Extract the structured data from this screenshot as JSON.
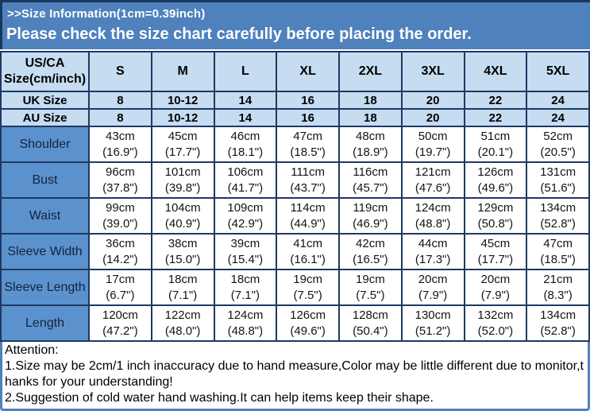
{
  "banner": {
    "title": ">>Size Information(1cm=0.39inch)",
    "subtitle": "Please check the size chart carefully before placing the order."
  },
  "table": {
    "corner_header_lines": [
      "US/CA",
      "Size(cm/inch)"
    ],
    "size_columns": [
      "S",
      "M",
      "L",
      "XL",
      "2XL",
      "3XL",
      "4XL",
      "5XL"
    ],
    "region_rows": [
      {
        "label": "UK Size",
        "values": [
          "8",
          "10-12",
          "14",
          "16",
          "18",
          "20",
          "22",
          "24"
        ]
      },
      {
        "label": "AU Size",
        "values": [
          "8",
          "10-12",
          "14",
          "16",
          "18",
          "20",
          "22",
          "24"
        ]
      }
    ],
    "measure_rows": [
      {
        "label": "Shoulder",
        "cm": [
          "43cm",
          "45cm",
          "46cm",
          "47cm",
          "48cm",
          "50cm",
          "51cm",
          "52cm"
        ],
        "inch": [
          "(16.9\")",
          "(17.7\")",
          "(18.1\")",
          "(18.5\")",
          "(18.9\")",
          "(19.7\")",
          "(20.1\")",
          "(20.5\")"
        ]
      },
      {
        "label": "Bust",
        "cm": [
          "96cm",
          "101cm",
          "106cm",
          "111cm",
          "116cm",
          "121cm",
          "126cm",
          "131cm"
        ],
        "inch": [
          "(37.8\")",
          "(39.8\")",
          "(41.7\")",
          "(43.7\")",
          "(45.7\")",
          "(47.6\")",
          "(49.6\")",
          "(51.6\")"
        ]
      },
      {
        "label": "Waist",
        "cm": [
          "99cm",
          "104cm",
          "109cm",
          "114cm",
          "119cm",
          "124cm",
          "129cm",
          "134cm"
        ],
        "inch": [
          "(39.0\")",
          "(40.9\")",
          "(42.9\")",
          "(44.9\")",
          "(46.9\")",
          "(48.8\")",
          "(50.8\")",
          "(52.8\")"
        ]
      },
      {
        "label": "Sleeve Width",
        "cm": [
          "36cm",
          "38cm",
          "39cm",
          "41cm",
          "42cm",
          "44cm",
          "45cm",
          "47cm"
        ],
        "inch": [
          "(14.2\")",
          "(15.0\")",
          "(15.4\")",
          "(16.1\")",
          "(16.5\")",
          "(17.3\")",
          "(17.7\")",
          "(18.5\")"
        ]
      },
      {
        "label": "Sleeve Length",
        "cm": [
          "17cm",
          "18cm",
          "18cm",
          "19cm",
          "19cm",
          "20cm",
          "20cm",
          "21cm"
        ],
        "inch": [
          "(6.7\")",
          "(7.1\")",
          "(7.1\")",
          "(7.5\")",
          "(7.5\")",
          "(7.9\")",
          "(7.9\")",
          "(8.3\")"
        ]
      },
      {
        "label": "Length",
        "cm": [
          "120cm",
          "122cm",
          "124cm",
          "126cm",
          "128cm",
          "130cm",
          "132cm",
          "134cm"
        ],
        "inch": [
          "(47.2\")",
          "(48.0\")",
          "(48.8\")",
          "(49.6\")",
          "(50.4\")",
          "(51.2\")",
          "(52.0\")",
          "(52.8\")"
        ]
      }
    ]
  },
  "attention": {
    "heading": "Attention:",
    "lines": [
      "1.Size may be 2cm/1 inch inaccuracy due to hand measure,Color may be little different due to monitor,t",
      "hanks for your understanding!",
      "2.Suggestion of cold water hand washing.It can help items keep their shape."
    ]
  },
  "colors": {
    "banner_blue": "#4f81bd",
    "border_navy": "#17375d",
    "grid_navy": "#1f3864",
    "header_light_blue": "#c5dcf1",
    "label_blue": "#5b92ce",
    "text_dark": "#16233c"
  }
}
